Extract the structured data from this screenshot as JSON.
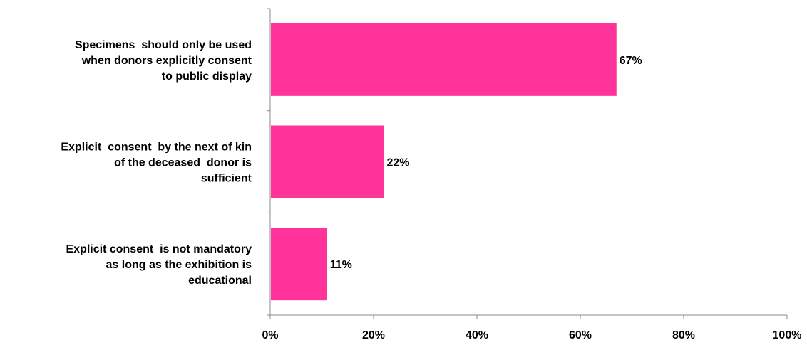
{
  "chart_data": {
    "type": "bar",
    "orientation": "horizontal",
    "categories": [
      [
        "Specimens  should only be used",
        "when donors explicitly consent",
        "to public display"
      ],
      [
        "Explicit  consent  by the next of kin",
        "of the deceased  donor is",
        "sufficient"
      ],
      [
        "Explicit consent  is not mandatory",
        "as long as the exhibition is",
        "educational"
      ]
    ],
    "values": [
      67,
      22,
      11
    ],
    "data_labels": [
      "67%",
      "22%",
      "11%"
    ],
    "x_ticks": [
      {
        "value": 0,
        "label": "0%"
      },
      {
        "value": 20,
        "label": "20%"
      },
      {
        "value": 40,
        "label": "40%"
      },
      {
        "value": 60,
        "label": "60%"
      },
      {
        "value": 80,
        "label": "80%"
      },
      {
        "value": 100,
        "label": "100%"
      }
    ],
    "xlim": [
      0,
      100
    ],
    "grid": false,
    "legend": "none",
    "title": "",
    "xlabel": "",
    "ylabel": "",
    "colors": {
      "bar": "#ff3399",
      "axis": "#888888",
      "text": "#000000"
    }
  }
}
